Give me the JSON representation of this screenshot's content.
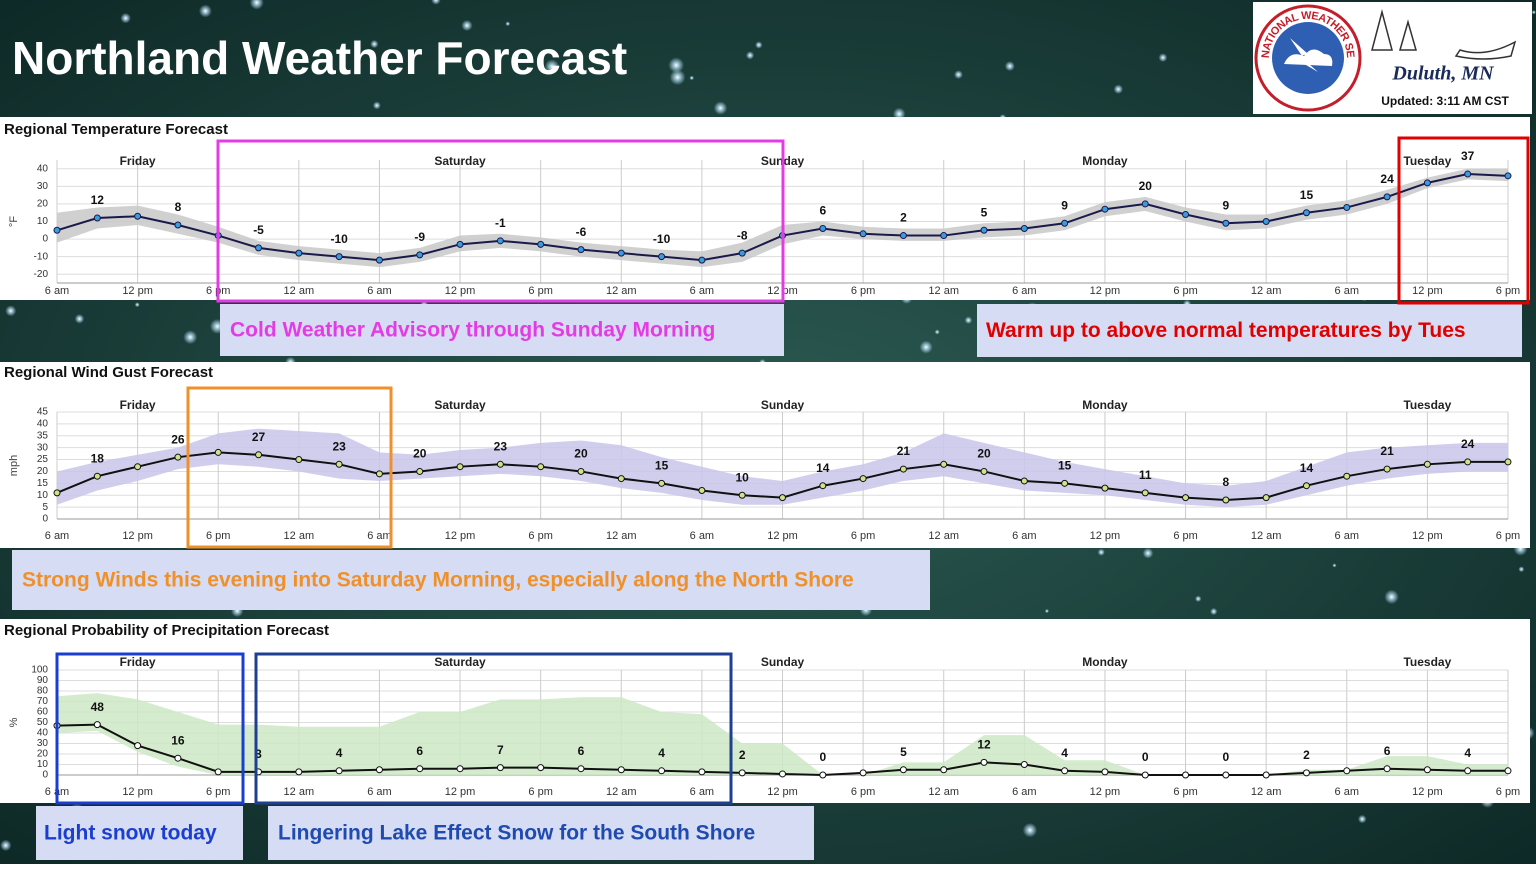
{
  "header": {
    "title": "Northland Weather Forecast",
    "agency": "NATIONAL WEATHER SERVICE",
    "office": "Duluth, MN",
    "updated": "Updated: 3:11 AM CST"
  },
  "annotations": [
    {
      "text": "Cold Weather Advisory through Sunday Morning",
      "color": "#e43ce4"
    },
    {
      "text": "Warm up to above normal temperatures by Tues",
      "color": "#e00000"
    },
    {
      "text": "Strong Winds this evening into Saturday Morning, especially along the North Shore",
      "color": "#f0902a"
    },
    {
      "text": "Light snow today",
      "color": "#1a3fd0"
    },
    {
      "text": "Lingering Lake Effect Snow for the South Shore",
      "color": "#1f4bb0"
    }
  ],
  "chart_data": [
    {
      "type": "line",
      "title": "Regional Temperature Forecast",
      "ylabel": "°F",
      "x": [
        0,
        3,
        6,
        9,
        12,
        15,
        18,
        21,
        24,
        27,
        30,
        33,
        36,
        39,
        42,
        45,
        48,
        51,
        54,
        57,
        60,
        63,
        66,
        69,
        72,
        75,
        78,
        81,
        84,
        87,
        90,
        93,
        96,
        99,
        102,
        105,
        108
      ],
      "xlim": [
        0,
        108
      ],
      "xticks": [
        {
          "value": 0,
          "label": "6 am"
        },
        {
          "value": 6,
          "label": "12 pm"
        },
        {
          "value": 12,
          "label": "6 pm"
        },
        {
          "value": 18,
          "label": "12 am"
        },
        {
          "value": 24,
          "label": "6 am"
        },
        {
          "value": 30,
          "label": "12 pm"
        },
        {
          "value": 36,
          "label": "6 pm"
        },
        {
          "value": 42,
          "label": "12 am"
        },
        {
          "value": 48,
          "label": "6 am"
        },
        {
          "value": 54,
          "label": "12 pm"
        },
        {
          "value": 60,
          "label": "6 pm"
        },
        {
          "value": 66,
          "label": "12 am"
        },
        {
          "value": 72,
          "label": "6 am"
        },
        {
          "value": 78,
          "label": "12 pm"
        },
        {
          "value": 84,
          "label": "6 pm"
        },
        {
          "value": 90,
          "label": "12 am"
        },
        {
          "value": 96,
          "label": "6 am"
        },
        {
          "value": 102,
          "label": "12 pm"
        },
        {
          "value": 108,
          "label": "6 pm"
        }
      ],
      "days": [
        {
          "value": 6,
          "label": "Friday"
        },
        {
          "value": 30,
          "label": "Saturday"
        },
        {
          "value": 54,
          "label": "Sunday"
        },
        {
          "value": 78,
          "label": "Monday"
        },
        {
          "value": 102,
          "label": "Tuesday"
        }
      ],
      "ylim": [
        -25,
        45
      ],
      "yticks": [
        -20,
        -10,
        0,
        10,
        20,
        30,
        40
      ],
      "grid": true,
      "values": [
        5,
        12,
        13,
        8,
        2,
        -5,
        -8,
        -10,
        -12,
        -9,
        -3,
        -1,
        -3,
        -6,
        -8,
        -10,
        -12,
        -8,
        2,
        6,
        3,
        2,
        2,
        5,
        6,
        9,
        17,
        20,
        14,
        9,
        10,
        15,
        18,
        24,
        32,
        37,
        36
      ],
      "band_upper": [
        15,
        18,
        19,
        14,
        7,
        -1,
        -4,
        -6,
        -8,
        -5,
        2,
        3,
        1,
        -2,
        -4,
        -6,
        -7,
        -2,
        8,
        10,
        7,
        6,
        6,
        9,
        10,
        13,
        21,
        24,
        18,
        14,
        14,
        19,
        22,
        28,
        35,
        40,
        40
      ],
      "band_lower": [
        -2,
        6,
        8,
        3,
        -2,
        -9,
        -12,
        -14,
        -16,
        -13,
        -7,
        -5,
        -7,
        -10,
        -12,
        -14,
        -16,
        -13,
        -3,
        2,
        0,
        -1,
        -1,
        1,
        2,
        5,
        13,
        16,
        10,
        5,
        6,
        11,
        14,
        20,
        29,
        34,
        33
      ],
      "line_color": "#1a1a4a",
      "marker_color": "#3a9be0",
      "band_color": "#c8c8c8"
    },
    {
      "type": "line",
      "title": "Regional Wind Gust Forecast",
      "ylabel": "mph",
      "x": [
        0,
        3,
        6,
        9,
        12,
        15,
        18,
        21,
        24,
        27,
        30,
        33,
        36,
        39,
        42,
        45,
        48,
        51,
        54,
        57,
        60,
        63,
        66,
        69,
        72,
        75,
        78,
        81,
        84,
        87,
        90,
        93,
        96,
        99,
        102,
        105,
        108
      ],
      "xlim": [
        0,
        108
      ],
      "xticks": [
        {
          "value": 0,
          "label": "6 am"
        },
        {
          "value": 6,
          "label": "12 pm"
        },
        {
          "value": 12,
          "label": "6 pm"
        },
        {
          "value": 18,
          "label": "12 am"
        },
        {
          "value": 24,
          "label": "6 am"
        },
        {
          "value": 30,
          "label": "12 pm"
        },
        {
          "value": 36,
          "label": "6 pm"
        },
        {
          "value": 42,
          "label": "12 am"
        },
        {
          "value": 48,
          "label": "6 am"
        },
        {
          "value": 54,
          "label": "12 pm"
        },
        {
          "value": 60,
          "label": "6 pm"
        },
        {
          "value": 66,
          "label": "12 am"
        },
        {
          "value": 72,
          "label": "6 am"
        },
        {
          "value": 78,
          "label": "12 pm"
        },
        {
          "value": 84,
          "label": "6 pm"
        },
        {
          "value": 90,
          "label": "12 am"
        },
        {
          "value": 96,
          "label": "6 am"
        },
        {
          "value": 102,
          "label": "12 pm"
        },
        {
          "value": 108,
          "label": "6 pm"
        }
      ],
      "days": [
        {
          "value": 6,
          "label": "Friday"
        },
        {
          "value": 30,
          "label": "Saturday"
        },
        {
          "value": 54,
          "label": "Sunday"
        },
        {
          "value": 78,
          "label": "Monday"
        },
        {
          "value": 102,
          "label": "Tuesday"
        }
      ],
      "ylim": [
        0,
        45
      ],
      "yticks": [
        0,
        5,
        10,
        15,
        20,
        25,
        30,
        35,
        40,
        45
      ],
      "grid": true,
      "values": [
        11,
        18,
        22,
        26,
        28,
        27,
        25,
        23,
        19,
        20,
        22,
        23,
        22,
        20,
        17,
        15,
        12,
        10,
        9,
        14,
        17,
        21,
        23,
        20,
        16,
        15,
        13,
        11,
        9,
        8,
        9,
        14,
        18,
        21,
        23,
        24,
        24
      ],
      "band_upper": [
        20,
        24,
        27,
        30,
        36,
        38,
        37,
        36,
        28,
        27,
        29,
        30,
        32,
        33,
        31,
        26,
        22,
        18,
        16,
        20,
        23,
        28,
        36,
        32,
        28,
        24,
        21,
        18,
        15,
        14,
        16,
        22,
        28,
        30,
        31,
        32,
        32
      ],
      "band_lower": [
        6,
        12,
        16,
        21,
        23,
        22,
        20,
        17,
        16,
        17,
        18,
        19,
        18,
        16,
        13,
        11,
        8,
        6,
        6,
        9,
        12,
        16,
        18,
        15,
        12,
        11,
        10,
        8,
        6,
        5,
        6,
        10,
        14,
        17,
        19,
        20,
        20
      ],
      "line_color": "#111111",
      "marker_color": "#cfe38a",
      "band_color": "#c9c6ea"
    },
    {
      "type": "line",
      "title": "Regional Probability of Precipitation Forecast",
      "ylabel": "%",
      "x": [
        0,
        3,
        6,
        9,
        12,
        15,
        18,
        21,
        24,
        27,
        30,
        33,
        36,
        39,
        42,
        45,
        48,
        51,
        54,
        57,
        60,
        63,
        66,
        69,
        72,
        75,
        78,
        81,
        84,
        87,
        90,
        93,
        96,
        99,
        102,
        105,
        108
      ],
      "xlim": [
        0,
        108
      ],
      "xticks": [
        {
          "value": 0,
          "label": "6 am"
        },
        {
          "value": 6,
          "label": "12 pm"
        },
        {
          "value": 12,
          "label": "6 pm"
        },
        {
          "value": 18,
          "label": "12 am"
        },
        {
          "value": 24,
          "label": "6 am"
        },
        {
          "value": 30,
          "label": "12 pm"
        },
        {
          "value": 36,
          "label": "6 pm"
        },
        {
          "value": 42,
          "label": "12 am"
        },
        {
          "value": 48,
          "label": "6 am"
        },
        {
          "value": 54,
          "label": "12 pm"
        },
        {
          "value": 60,
          "label": "6 pm"
        },
        {
          "value": 66,
          "label": "12 am"
        },
        {
          "value": 72,
          "label": "6 am"
        },
        {
          "value": 78,
          "label": "12 pm"
        },
        {
          "value": 84,
          "label": "6 pm"
        },
        {
          "value": 90,
          "label": "12 am"
        },
        {
          "value": 96,
          "label": "6 am"
        },
        {
          "value": 102,
          "label": "12 pm"
        },
        {
          "value": 108,
          "label": "6 pm"
        }
      ],
      "days": [
        {
          "value": 6,
          "label": "Friday"
        },
        {
          "value": 30,
          "label": "Saturday"
        },
        {
          "value": 54,
          "label": "Sunday"
        },
        {
          "value": 78,
          "label": "Monday"
        },
        {
          "value": 102,
          "label": "Tuesday"
        }
      ],
      "ylim": [
        0,
        100
      ],
      "yticks": [
        0,
        10,
        20,
        30,
        40,
        50,
        60,
        70,
        80,
        90,
        100
      ],
      "grid": true,
      "values": [
        47,
        48,
        28,
        16,
        3,
        3,
        3,
        4,
        5,
        6,
        6,
        7,
        7,
        6,
        5,
        4,
        3,
        2,
        1,
        0,
        2,
        5,
        5,
        12,
        10,
        4,
        3,
        0,
        0,
        0,
        0,
        2,
        4,
        6,
        5,
        4,
        4
      ],
      "band_upper": [
        75,
        78,
        72,
        60,
        48,
        48,
        46,
        46,
        46,
        60,
        60,
        72,
        72,
        74,
        74,
        60,
        58,
        30,
        30,
        0,
        0,
        12,
        12,
        38,
        38,
        14,
        14,
        0,
        0,
        0,
        0,
        5,
        5,
        18,
        18,
        10,
        10
      ],
      "band_lower": [
        40,
        42,
        22,
        8,
        0,
        0,
        0,
        0,
        0,
        0,
        0,
        0,
        0,
        0,
        0,
        0,
        0,
        0,
        0,
        0,
        0,
        0,
        0,
        0,
        0,
        0,
        0,
        0,
        0,
        0,
        0,
        0,
        0,
        0,
        0,
        0,
        0
      ],
      "line_color": "#111111",
      "marker_color": "#ffffff",
      "band_color": "#cde8c4"
    }
  ]
}
